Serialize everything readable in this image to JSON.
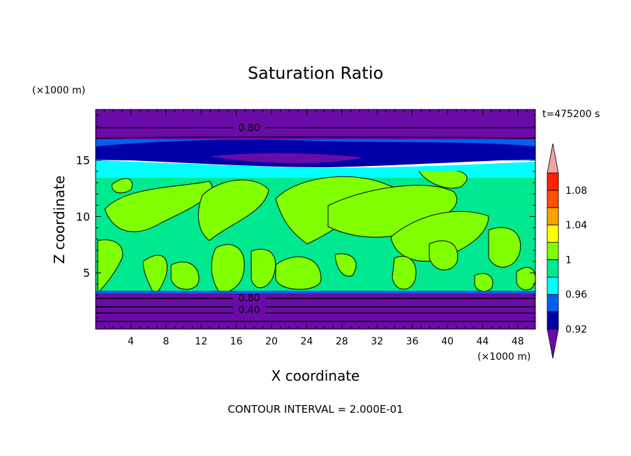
{
  "chart_data": {
    "type": "heatmap",
    "title": "Saturation Ratio",
    "xlabel": "X coordinate",
    "ylabel": "Z coordinate",
    "x_unit": "(×1000 m)",
    "y_unit": "(×1000 m)",
    "xlim": [
      0,
      50
    ],
    "ylim": [
      0,
      19.5
    ],
    "x_ticks": [
      "4",
      "8",
      "12",
      "16",
      "20",
      "24",
      "28",
      "32",
      "36",
      "40",
      "44",
      "48"
    ],
    "y_ticks": [
      "5",
      "10",
      "15"
    ],
    "time_label": "t=475200 s",
    "contour_interval_label": "CONTOUR INTERVAL = 2.000E-01",
    "contour_labels": [
      "0.80",
      "0.80",
      "0.40"
    ],
    "colorbar": {
      "levels": [
        0.92,
        0.94,
        0.96,
        0.98,
        1,
        1.02,
        1.04,
        1.06,
        1.08,
        1.1
      ],
      "tick_labels": [
        "1.08",
        "1.04",
        "1",
        "0.96",
        "0.92"
      ],
      "colors": [
        "#6a0ba8",
        "#0000a8",
        "#0060f0",
        "#00ffff",
        "#00e890",
        "#80ff00",
        "#ffff00",
        "#ffa000",
        "#ff5000",
        "#ff2000",
        "#f4a0a0"
      ]
    },
    "regions": [
      {
        "z_range": [
          0,
          3.3
        ],
        "level": "<0.92",
        "color": "#6a0ba8"
      },
      {
        "z_range": [
          3.3,
          13.5
        ],
        "level": "0.98-1.02",
        "color": "#00e890 / #80ff00"
      },
      {
        "z_range": [
          13.5,
          15.5
        ],
        "level": "0.96-0.98",
        "color": "#00ffff"
      },
      {
        "z_range": [
          15.5,
          17.3
        ],
        "level": "0.92-0.96",
        "color": "#0000a8 / #0060f0"
      },
      {
        "z_range": [
          17.3,
          19.5
        ],
        "level": "<0.92",
        "color": "#6a0ba8"
      }
    ]
  }
}
